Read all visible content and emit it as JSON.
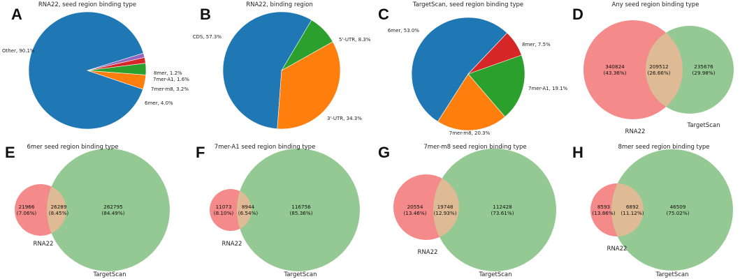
{
  "colors": {
    "blue": "#1f77b4",
    "orange": "#ff7f0e",
    "green": "#2ca02c",
    "red": "#d62728",
    "purple": "#9467bd",
    "venn_left": "#f48a8a",
    "venn_right": "#95c993",
    "venn_overlap": "#debb94",
    "edge": "#ffffff"
  },
  "chart_data": [
    {
      "panel": "A",
      "type": "pie",
      "title": "RNA22, seed region binding type",
      "slices": [
        {
          "label": "Other, 90.1%",
          "value": 90.1,
          "color_key": "blue"
        },
        {
          "label": "6mer, 4.0%",
          "value": 4.0,
          "color_key": "orange"
        },
        {
          "label": "7mer-m8, 3.2%",
          "value": 3.2,
          "color_key": "green"
        },
        {
          "label": "7mer-A1, 1.6%",
          "value": 1.6,
          "color_key": "red"
        },
        {
          "label": "8mer, 1.2%",
          "value": 1.2,
          "color_key": "purple"
        }
      ]
    },
    {
      "panel": "B",
      "type": "pie",
      "title": "RNA22, binding region",
      "slices": [
        {
          "label": "CDS, 57.3%",
          "value": 57.3,
          "color_key": "blue"
        },
        {
          "label": "3'-UTR, 34.3%",
          "value": 34.3,
          "color_key": "orange"
        },
        {
          "label": "5'-UTR, 8.3%",
          "value": 8.3,
          "color_key": "green"
        }
      ]
    },
    {
      "panel": "C",
      "type": "pie",
      "title": "TargetScan, seed region binding type",
      "slices": [
        {
          "label": "6mer, 53.0%",
          "value": 53.0,
          "color_key": "blue"
        },
        {
          "label": "7mer-m8, 20.3%",
          "value": 20.3,
          "color_key": "orange"
        },
        {
          "label": "7mer-A1, 19.1%",
          "value": 19.1,
          "color_key": "green"
        },
        {
          "label": "8mer, 7.5%",
          "value": 7.5,
          "color_key": "red"
        }
      ]
    },
    {
      "panel": "D",
      "type": "venn",
      "title": "Any seed region binding type",
      "sets": [
        "RNA22",
        "TargetScan"
      ],
      "regions": [
        {
          "count": "340824",
          "percent": "(43.36%)"
        },
        {
          "count": "209512",
          "percent": "(26.66%)"
        },
        {
          "count": "235676",
          "percent": "(29.98%)"
        }
      ]
    },
    {
      "panel": "E",
      "type": "venn",
      "title": "6mer seed region binding type",
      "sets": [
        "RNA22",
        "TargetScan"
      ],
      "regions": [
        {
          "count": "21966",
          "percent": "(7.06%)"
        },
        {
          "count": "26289",
          "percent": "(8.45%)"
        },
        {
          "count": "262795",
          "percent": "(84.49%)"
        }
      ]
    },
    {
      "panel": "F",
      "type": "venn",
      "title": "7mer-A1 seed region binding type",
      "sets": [
        "RNA22",
        "TargetScan"
      ],
      "regions": [
        {
          "count": "11073",
          "percent": "(8.10%)"
        },
        {
          "count": "8944",
          "percent": "(6.54%)"
        },
        {
          "count": "116756",
          "percent": "(85.36%)"
        }
      ]
    },
    {
      "panel": "G",
      "type": "venn",
      "title": "7mer-m8 seed region binding type",
      "sets": [
        "RNA22",
        "TargetScan"
      ],
      "regions": [
        {
          "count": "20554",
          "percent": "(13.46%)"
        },
        {
          "count": "19748",
          "percent": "(12.93%)"
        },
        {
          "count": "112428",
          "percent": "(73.61%)"
        }
      ]
    },
    {
      "panel": "H",
      "type": "venn",
      "title": "8mer seed region binding type",
      "sets": [
        "RNA22",
        "TargetScan"
      ],
      "regions": [
        {
          "count": "8593",
          "percent": "(13.86%)"
        },
        {
          "count": "6892",
          "percent": "(11.12%)"
        },
        {
          "count": "46509",
          "percent": "(75.02%)"
        }
      ]
    }
  ]
}
